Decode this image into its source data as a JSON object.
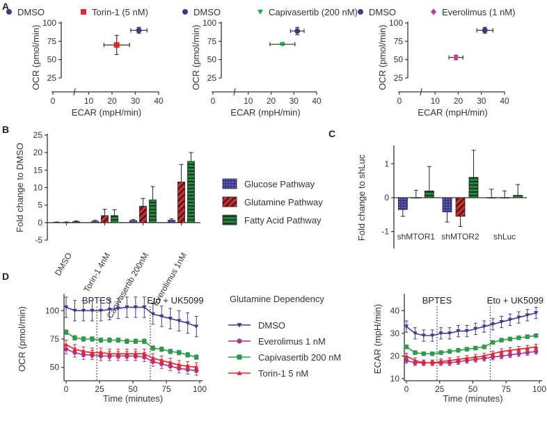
{
  "panels": {
    "a": "A",
    "b": "B",
    "c": "C",
    "d": "D"
  },
  "chart_data": [
    {
      "id": "A1",
      "type": "scatter",
      "xlabel": "ECAR (mpH/min)",
      "ylabel": "OCR (pmol/min)",
      "xlim": [
        0,
        40
      ],
      "ylim": [
        25,
        100
      ],
      "xticks": [
        "0",
        "10",
        "20",
        "30",
        "40"
      ],
      "yticks": [
        "25",
        "50",
        "75",
        "100"
      ],
      "legend": [
        "DMSO",
        "Torin-1 (5 nM)"
      ],
      "series": [
        {
          "name": "DMSO",
          "color": "#3d3a8c",
          "marker": "circle",
          "x": 31.5,
          "y": 90,
          "xerr": 3.5,
          "yerr": 4
        },
        {
          "name": "Torin-1 (5 nM)",
          "color": "#e0262a",
          "marker": "square",
          "x": 22,
          "y": 70,
          "xerr": 5.5,
          "yerr": 13
        }
      ]
    },
    {
      "id": "A2",
      "type": "scatter",
      "xlabel": "ECAR (mpH/min)",
      "ylabel": "OCR (pmol/min)",
      "xlim": [
        0,
        40
      ],
      "ylim": [
        25,
        100
      ],
      "xticks": [
        "0",
        "10",
        "20",
        "30",
        "40"
      ],
      "yticks": [
        "25",
        "50",
        "75",
        "100"
      ],
      "legend": [
        "DMSO",
        "Capivasertib (200 nM)"
      ],
      "series": [
        {
          "name": "DMSO",
          "color": "#3d3a8c",
          "marker": "circle",
          "x": 31.5,
          "y": 89,
          "xerr": 3,
          "yerr": 5
        },
        {
          "name": "Capivasertib (200 nM)",
          "color": "#1aa84a",
          "marker": "triangle-down",
          "x": 25,
          "y": 71,
          "xerr": 5.5,
          "yerr": 1
        }
      ]
    },
    {
      "id": "A3",
      "type": "scatter",
      "xlabel": "ECAR (mpH/min)",
      "ylabel": "OCR (pmol/min)",
      "xlim": [
        0,
        40
      ],
      "ylim": [
        25,
        100
      ],
      "xticks": [
        "0",
        "10",
        "20",
        "30",
        "40"
      ],
      "yticks": [
        "25",
        "50",
        "75",
        "100"
      ],
      "legend": [
        "DMSO",
        "Everolimus (1 nM)"
      ],
      "series": [
        {
          "name": "DMSO",
          "color": "#3d3a8c",
          "marker": "circle",
          "x": 31.5,
          "y": 90,
          "xerr": 3.5,
          "yerr": 4
        },
        {
          "name": "Everolimus (1 nM)",
          "color": "#b8439c",
          "marker": "diamond",
          "x": 19,
          "y": 53,
          "xerr": 3,
          "yerr": 3
        }
      ]
    },
    {
      "id": "B",
      "type": "bar",
      "ylabel": "Fold change to DMSO",
      "ylim": [
        -5,
        25
      ],
      "yticks": [
        "-5",
        "0",
        "5",
        "10",
        "15",
        "20",
        "25"
      ],
      "categories": [
        "DMSO",
        "Torin-1 4nM",
        "Capivasertib 200nM",
        "Everolimus 1nM"
      ],
      "series": [
        {
          "name": "Glucose Pathway",
          "color": "#3d3a8c",
          "values": [
            0.1,
            0.4,
            0.6,
            0.7
          ],
          "err": [
            0.1,
            0.3,
            0.3,
            0.4
          ]
        },
        {
          "name": "Glutamine Pathway",
          "color": "#e0262a",
          "values": [
            0.1,
            2.0,
            4.7,
            11.6
          ],
          "err": [
            0.1,
            1.8,
            2.2,
            5.0
          ]
        },
        {
          "name": "Fatty Acid Pathway",
          "color": "#1f8a3a",
          "values": [
            0.3,
            2.0,
            6.5,
            17.5
          ],
          "err": [
            0.2,
            1.7,
            3.8,
            2.5
          ]
        }
      ]
    },
    {
      "id": "C",
      "type": "bar",
      "ylabel": "Fold change to shLuc",
      "ylim": [
        -1.5,
        1.5
      ],
      "yticks": [
        "-1",
        "0",
        "1"
      ],
      "categories": [
        "shMTOR1",
        "shMTOR2",
        "shLuc"
      ],
      "series": [
        {
          "name": "Glucose Pathway",
          "color": "#3d3a8c",
          "values": [
            -0.35,
            -0.42,
            0.0
          ],
          "err": [
            0.2,
            0.3,
            0.25
          ]
        },
        {
          "name": "Glutamine Pathway",
          "color": "#e0262a",
          "values": [
            0.0,
            -0.55,
            0.0
          ],
          "err": [
            0.22,
            0.3,
            0.2
          ]
        },
        {
          "name": "Fatty Acid Pathway",
          "color": "#1f8a3a",
          "values": [
            0.2,
            0.6,
            0.07
          ],
          "err": [
            0.72,
            0.8,
            0.32
          ]
        }
      ]
    },
    {
      "id": "D1",
      "type": "line",
      "title": "Glutamine Dependency",
      "xlabel": "Time (minutes)",
      "ylabel": "OCR (pmol/min)",
      "xlim": [
        0,
        100
      ],
      "ylim": [
        40,
        110
      ],
      "xticks": [
        "0",
        "25",
        "50",
        "75",
        "100"
      ],
      "yticks": [
        "50",
        "75",
        "100"
      ],
      "annotations": [
        {
          "label": "BPTES",
          "x": 23
        },
        {
          "label": "Eto + UK5099",
          "x": 63
        }
      ],
      "x": [
        0,
        6.5,
        13,
        19.5,
        26,
        32.5,
        39,
        45.5,
        52,
        58.5,
        65,
        71.5,
        78,
        84.5,
        91,
        97.5
      ],
      "series": [
        {
          "name": "DMSO",
          "color": "#3d3a8c",
          "marker": "triangle-down",
          "err": 9,
          "values": [
            103,
            100,
            100,
            100,
            100,
            101,
            102,
            103,
            103,
            103,
            97,
            95,
            93,
            91,
            89,
            86
          ]
        },
        {
          "name": "Everolimus 1 nM",
          "color": "#a63590",
          "marker": "circle",
          "err": 4,
          "values": [
            66,
            63,
            61,
            61,
            60,
            60,
            60,
            60,
            60,
            59,
            55,
            53,
            51,
            49,
            48,
            47
          ]
        },
        {
          "name": "Capivasertib 200 nM",
          "color": "#2e9a4a",
          "marker": "square",
          "err": 2,
          "values": [
            81,
            76,
            75,
            75,
            74,
            74,
            74,
            73,
            73,
            73,
            67,
            66,
            64,
            63,
            61,
            59
          ]
        },
        {
          "name": "Torin-1 5 nM",
          "color": "#e8232a",
          "marker": "triangle-up",
          "err": 4,
          "values": [
            70,
            66,
            64,
            63,
            63,
            62,
            62,
            62,
            62,
            62,
            58,
            56,
            54,
            52,
            51,
            50
          ]
        }
      ]
    },
    {
      "id": "D2",
      "type": "line",
      "xlabel": "Time (minutes)",
      "ylabel": "ECAR (mpH/min)",
      "xlim": [
        0,
        100
      ],
      "ylim": [
        10,
        45
      ],
      "xticks": [
        "0",
        "25",
        "50",
        "75",
        "100"
      ],
      "yticks": [
        "10",
        "20",
        "30",
        "40"
      ],
      "annotations": [
        {
          "label": "BPTES",
          "x": 23
        },
        {
          "label": "Eto + UK5099",
          "x": 63
        }
      ],
      "x": [
        0,
        6.5,
        13,
        19.5,
        26,
        32.5,
        39,
        45.5,
        52,
        58.5,
        65,
        71.5,
        78,
        84.5,
        91,
        97.5
      ],
      "series": [
        {
          "name": "DMSO",
          "color": "#3d3a8c",
          "marker": "triangle-down",
          "err": 2.5,
          "values": [
            33,
            30,
            29,
            29,
            30,
            30,
            31,
            31,
            32,
            33,
            34,
            35,
            36,
            37,
            38,
            39
          ]
        },
        {
          "name": "Everolimus 1 nM",
          "color": "#a63590",
          "marker": "circle",
          "err": 1.2,
          "values": [
            18,
            17,
            17,
            17,
            17,
            17,
            17.5,
            18,
            18.5,
            19,
            19.5,
            20,
            20.5,
            21,
            21.5,
            22
          ]
        },
        {
          "name": "Capivasertib 200 nM",
          "color": "#2e9a4a",
          "marker": "square",
          "err": 0.8,
          "values": [
            24,
            21.5,
            21,
            21,
            21.5,
            22,
            22.5,
            23,
            23.5,
            24,
            26,
            27,
            27.5,
            28,
            28.5,
            29
          ]
        },
        {
          "name": "Torin-1 5 nM",
          "color": "#e8232a",
          "marker": "triangle-up",
          "err": 1.2,
          "values": [
            20,
            18,
            17,
            17,
            17.5,
            18,
            18.5,
            19,
            19.5,
            20,
            21,
            22,
            22.5,
            23,
            23.5,
            24
          ]
        }
      ]
    }
  ]
}
